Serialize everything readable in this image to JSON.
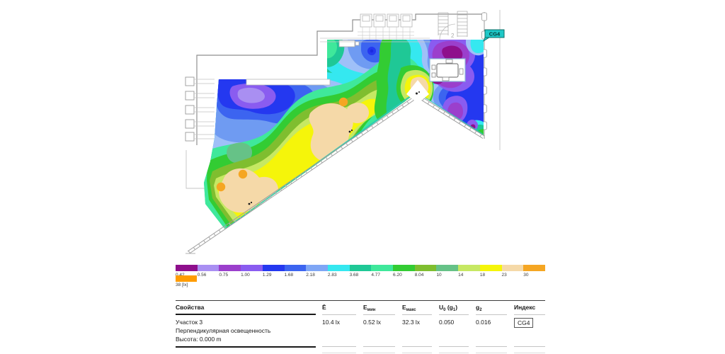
{
  "plan": {
    "flag_label": "CG4",
    "stair_label": "2"
  },
  "legend": {
    "values": [
      "0.42",
      "0.56",
      "0.75",
      "1.00",
      "1.29",
      "1.68",
      "2.18",
      "2.83",
      "3.68",
      "4.77",
      "6.20",
      "8.04",
      "10",
      "14",
      "18",
      "23",
      "30"
    ],
    "colors": [
      "#8e0f8c",
      "#a98ff2",
      "#9b3fcc",
      "#8a5cf0",
      "#2438f0",
      "#3c64f0",
      "#7fa6f5",
      "#35e8f0",
      "#1fc896",
      "#3fe89b",
      "#33cc33",
      "#7fbe2f",
      "#66c287",
      "#c6e863",
      "#f5f50a",
      "#f5d9a8",
      "#f5a623"
    ],
    "overflow_color": "#ff9c00",
    "overflow_label": "38 [lx]"
  },
  "table": {
    "headers": [
      [
        {
          "t": "Свойства"
        }
      ],
      [
        {
          "t": "Ē"
        }
      ],
      [
        {
          "t": "E"
        },
        {
          "t": "мин",
          "sub": true
        }
      ],
      [
        {
          "t": "E"
        },
        {
          "t": "макс",
          "sub": true
        }
      ],
      [
        {
          "t": "U"
        },
        {
          "t": "0",
          "sub": true
        },
        {
          "t": " (g"
        },
        {
          "t": "1",
          "sub": true
        },
        {
          "t": ")"
        }
      ],
      [
        {
          "t": "g"
        },
        {
          "t": "2",
          "sub": true
        }
      ],
      [
        {
          "t": "Индекс"
        }
      ]
    ],
    "row": {
      "name": "Участок 3",
      "description": "Перпендикулярная освещенность",
      "height": "Высота: 0.000 m",
      "e_avg": "10.4 lx",
      "e_min": "0.52 lx",
      "e_max": "32.3 lx",
      "u0": "0.050",
      "g2": "0.016",
      "index": "CG4"
    }
  }
}
